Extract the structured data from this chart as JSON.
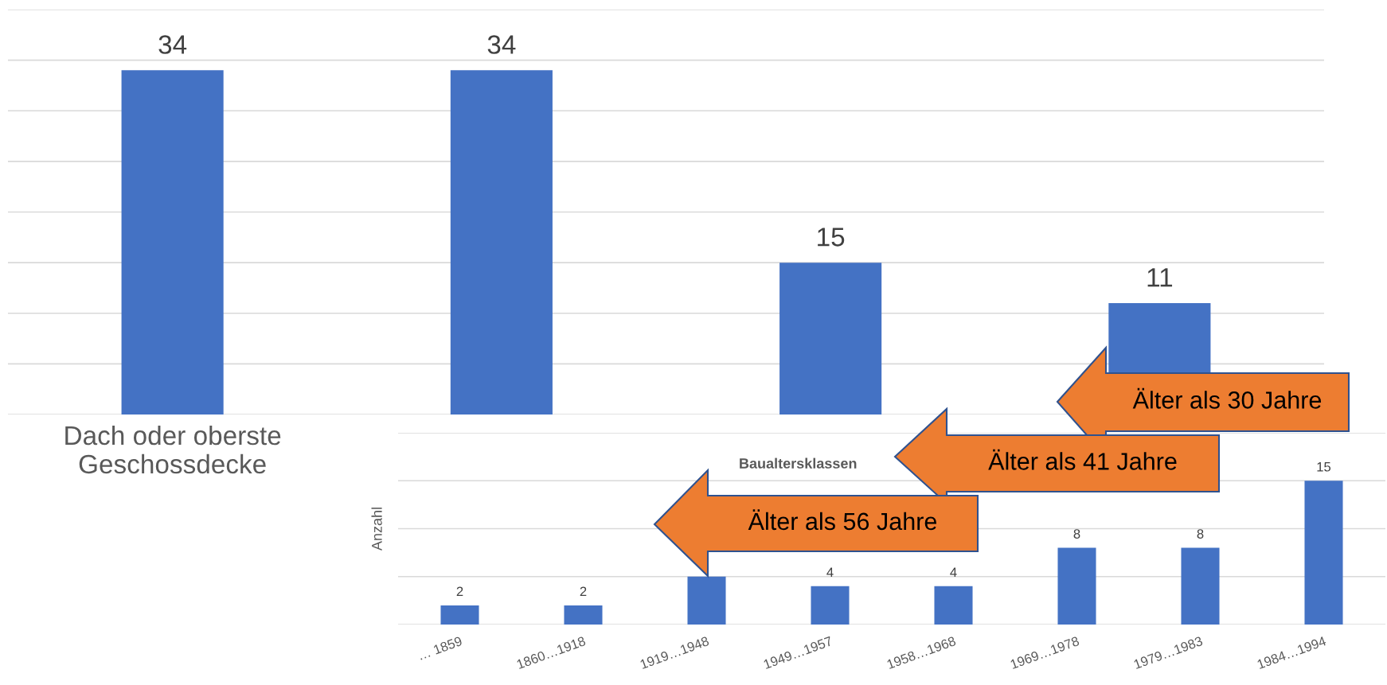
{
  "chart_data": [
    {
      "type": "bar",
      "categories": [
        "Dach oder oberste\nGeschossdecke",
        null,
        null,
        null
      ],
      "values": [
        34,
        34,
        15,
        11
      ],
      "color": "#4472c4",
      "data_labels": true,
      "ylim": [
        0,
        40
      ],
      "yticks": [
        {
          "value": 0,
          "label": null
        },
        {
          "value": 5,
          "label": null
        },
        {
          "value": 10,
          "label": null
        },
        {
          "value": 15,
          "label": null
        },
        {
          "value": 20,
          "label": null
        },
        {
          "value": 25,
          "label": null
        },
        {
          "value": 30,
          "label": null
        },
        {
          "value": 35,
          "label": null
        },
        {
          "value": 40,
          "label": null
        }
      ],
      "tick_labels": "x",
      "grid": "y"
    },
    {
      "type": "bar",
      "title": "Baualtersklassen",
      "ylabel": "Anzahl",
      "categories": [
        "… 1859",
        "1860…1918",
        "1919…1948",
        "1949…1957",
        "1958…1968",
        "1969…1978",
        "1979…1983",
        "1984…1994"
      ],
      "values": [
        2,
        2,
        5,
        4,
        4,
        8,
        8,
        15
      ],
      "value_labels": [
        "2",
        "2",
        null,
        "4",
        "4",
        "8",
        "8",
        "15"
      ],
      "color": "#4472c4",
      "ylim": [
        0,
        20
      ],
      "yticks": [
        {
          "value": 0,
          "label": null
        },
        {
          "value": 5,
          "label": null
        },
        {
          "value": 10,
          "label": null
        },
        {
          "value": 15,
          "label": null
        },
        {
          "value": 20,
          "label": null
        }
      ],
      "tick_labels": "x",
      "grid": "y",
      "annotations": [
        "Älter als 30 Jahre",
        "Älter als 41 Jahre",
        "Älter als 56 Jahre"
      ]
    }
  ]
}
